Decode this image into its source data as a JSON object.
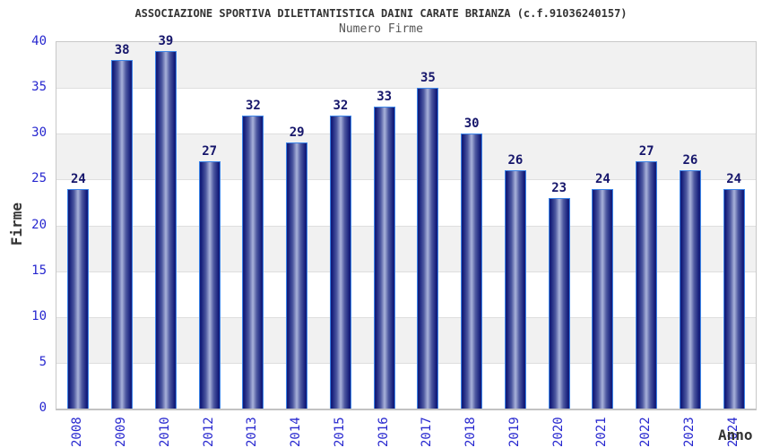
{
  "chart_data": {
    "type": "bar",
    "title": "ASSOCIAZIONE SPORTIVA DILETTANTISTICA DAINI CARATE BRIANZA (c.f.91036240157)",
    "subtitle": "Numero Firme",
    "xlabel": "Anno",
    "ylabel": "Firme",
    "categories": [
      "2008",
      "2009",
      "2010",
      "2012",
      "2013",
      "2014",
      "2015",
      "2016",
      "2017",
      "2018",
      "2019",
      "2020",
      "2021",
      "2022",
      "2023",
      "2024"
    ],
    "values": [
      24,
      38,
      39,
      27,
      32,
      29,
      32,
      33,
      35,
      30,
      26,
      23,
      24,
      27,
      26,
      24
    ],
    "series_name": "Numero Firme",
    "ylim": [
      0,
      40
    ],
    "ytick_step": 5,
    "yticks": [
      0,
      5,
      10,
      15,
      20,
      25,
      30,
      35,
      40
    ],
    "grid": "alternating-horizontal-bands",
    "legend": "none",
    "bar_value_labels_shown": true,
    "colors": {
      "bar_dark": "#141d7a",
      "bar_mid": "#4d58a0",
      "bar_light": "#a9b2da",
      "bar_outline": "#3d85e8",
      "value_label": "#16166b",
      "tick_label": "#2727cf",
      "band_gray": "#f1f1f1",
      "band_white": "#ffffff",
      "title_color": "#333333",
      "subtitle_color": "#555555",
      "axis_title_color": "#333333",
      "plot_border": "#c8c8c8"
    }
  }
}
